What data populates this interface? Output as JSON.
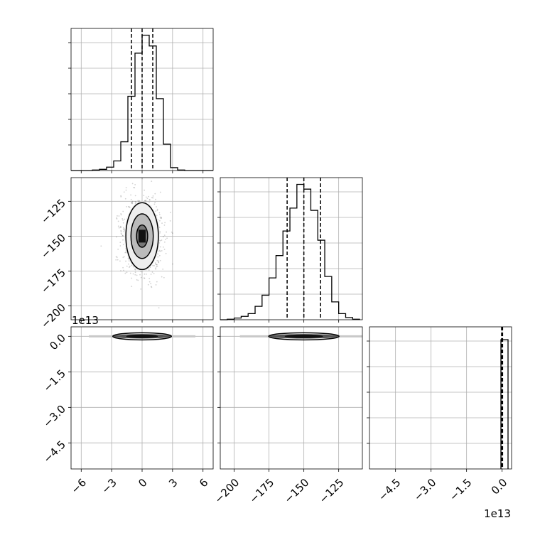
{
  "chart_data": {
    "type": "corner",
    "offset_text": "1e13",
    "grid": true,
    "parameters": [
      {
        "index": 0,
        "range": [
          -7,
          7
        ],
        "ticks": [
          -6,
          -3,
          0,
          3,
          6
        ],
        "tick_labels": [
          "−6",
          "−3",
          "0",
          "3",
          "6"
        ],
        "quantiles": [
          -1.05,
          0.0,
          1.05
        ]
      },
      {
        "index": 1,
        "range": [
          -210,
          -108
        ],
        "ticks": [
          -200,
          -175,
          -150,
          -125
        ],
        "tick_labels": [
          "−200",
          "−175",
          "−150",
          "−125"
        ],
        "quantiles": [
          -162,
          -150,
          -138
        ]
      },
      {
        "index": 2,
        "range": [
          -5.6,
          0.4
        ],
        "ticks": [
          -4.5,
          -3.0,
          -1.5,
          0.0
        ],
        "tick_labels": [
          "−4.5",
          "−3.0",
          "−1.5",
          "0.0"
        ],
        "quantiles": [
          -0.02,
          0.0,
          0.02
        ],
        "scale": "1e13"
      }
    ],
    "marginals": [
      {
        "param": 0,
        "bin_edges": [
          -7,
          -6.3,
          -5.6,
          -4.9,
          -4.2,
          -3.5,
          -2.8,
          -2.1,
          -1.4,
          -0.7,
          0,
          0.7,
          1.4,
          2.1,
          2.8,
          3.5,
          4.2,
          4.9,
          5.6,
          6.3,
          7
        ],
        "counts": [
          0,
          0,
          0,
          2,
          5,
          14,
          40,
          120,
          310,
          490,
          565,
          520,
          300,
          110,
          12,
          2,
          0,
          0,
          0,
          0
        ]
      },
      {
        "param": 1,
        "bin_edges": [
          -210,
          -205,
          -200,
          -195,
          -190,
          -185,
          -180,
          -175,
          -170,
          -165,
          -160,
          -155,
          -150,
          -145,
          -140,
          -135,
          -130,
          -125,
          -120,
          -115,
          -110
        ],
        "counts": [
          0,
          2,
          6,
          12,
          22,
          48,
          88,
          150,
          230,
          318,
          400,
          485,
          468,
          392,
          285,
          155,
          64,
          22,
          8,
          2
        ]
      },
      {
        "param": 2,
        "bin_edges": [
          -0.05,
          0.25
        ],
        "counts": [
          100
        ]
      }
    ],
    "joint": [
      {
        "x_param": 0,
        "y_param": 1,
        "center": [
          0,
          -150
        ],
        "levels": [
          {
            "sx": 0.55,
            "sy": 8
          },
          {
            "sx": 1.1,
            "sy": 16
          },
          {
            "sx": 1.6,
            "sy": 24
          }
        ]
      },
      {
        "x_param": 0,
        "y_param": 2,
        "center": [
          0,
          0
        ]
      },
      {
        "x_param": 1,
        "y_param": 2,
        "center": [
          -150,
          0
        ]
      }
    ]
  }
}
